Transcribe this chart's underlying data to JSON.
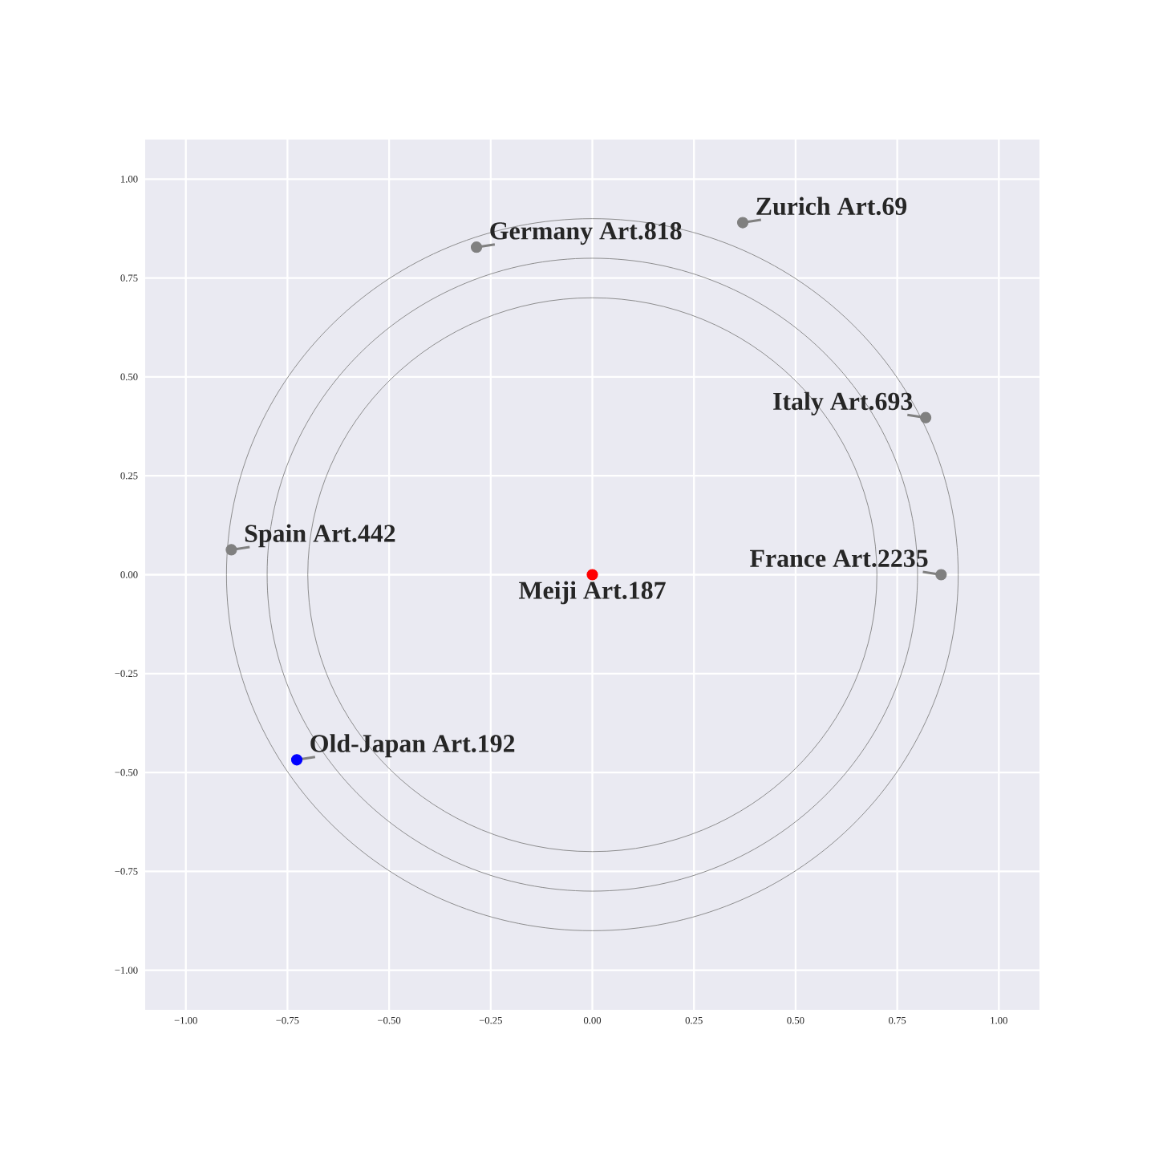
{
  "chart_data": {
    "type": "scatter",
    "xlim": [
      -1.1,
      1.1
    ],
    "ylim": [
      -1.1,
      1.1
    ],
    "xticks": [
      {
        "value": -1,
        "label": "−1.00"
      },
      {
        "value": -0.75,
        "label": "−0.75"
      },
      {
        "value": -0.5,
        "label": "−0.50"
      },
      {
        "value": -0.25,
        "label": "−0.25"
      },
      {
        "value": 0,
        "label": "0.00"
      },
      {
        "value": 0.25,
        "label": "0.25"
      },
      {
        "value": 0.5,
        "label": "0.50"
      },
      {
        "value": 0.75,
        "label": "0.75"
      },
      {
        "value": 1,
        "label": "1.00"
      }
    ],
    "yticks": [
      {
        "value": -1,
        "label": "−1.00"
      },
      {
        "value": -0.75,
        "label": "−0.75"
      },
      {
        "value": -0.5,
        "label": "−0.50"
      },
      {
        "value": -0.25,
        "label": "−0.25"
      },
      {
        "value": 0,
        "label": "0.00"
      },
      {
        "value": 0.25,
        "label": "0.25"
      },
      {
        "value": 0.5,
        "label": "0.50"
      },
      {
        "value": 0.75,
        "label": "0.75"
      },
      {
        "value": 1,
        "label": "1.00"
      }
    ],
    "grid": true,
    "series": [
      {
        "type": "scatter",
        "marker": "circle",
        "x": [
          0.37,
          -0.285,
          0.82,
          -0.888,
          0.858,
          0,
          -0.727
        ],
        "values": [
          0.89,
          0.828,
          0.397,
          0.063,
          0.0,
          0.0,
          -0.468
        ],
        "colors": [
          "#808080",
          "#808080",
          "#808080",
          "#808080",
          "#808080",
          "#ff0000",
          "#0000ff"
        ]
      }
    ],
    "annotations": [
      {
        "text": "Zurich Art.69",
        "x": 0.37,
        "y": 0.89
      },
      {
        "text": "Germany Art.818",
        "x": -0.285,
        "y": 0.828
      },
      {
        "text": "Italy Art.693",
        "x": 0.82,
        "y": 0.397
      },
      {
        "text": "Spain Art.442",
        "x": -0.888,
        "y": 0.063
      },
      {
        "text": "France Art.2235",
        "x": 0.858,
        "y": 0.0
      },
      {
        "text": "Meiji Art.187",
        "x": 0,
        "y": 0.0
      },
      {
        "text": "Old-Japan Art.192",
        "x": -0.727,
        "y": -0.468
      }
    ]
  }
}
